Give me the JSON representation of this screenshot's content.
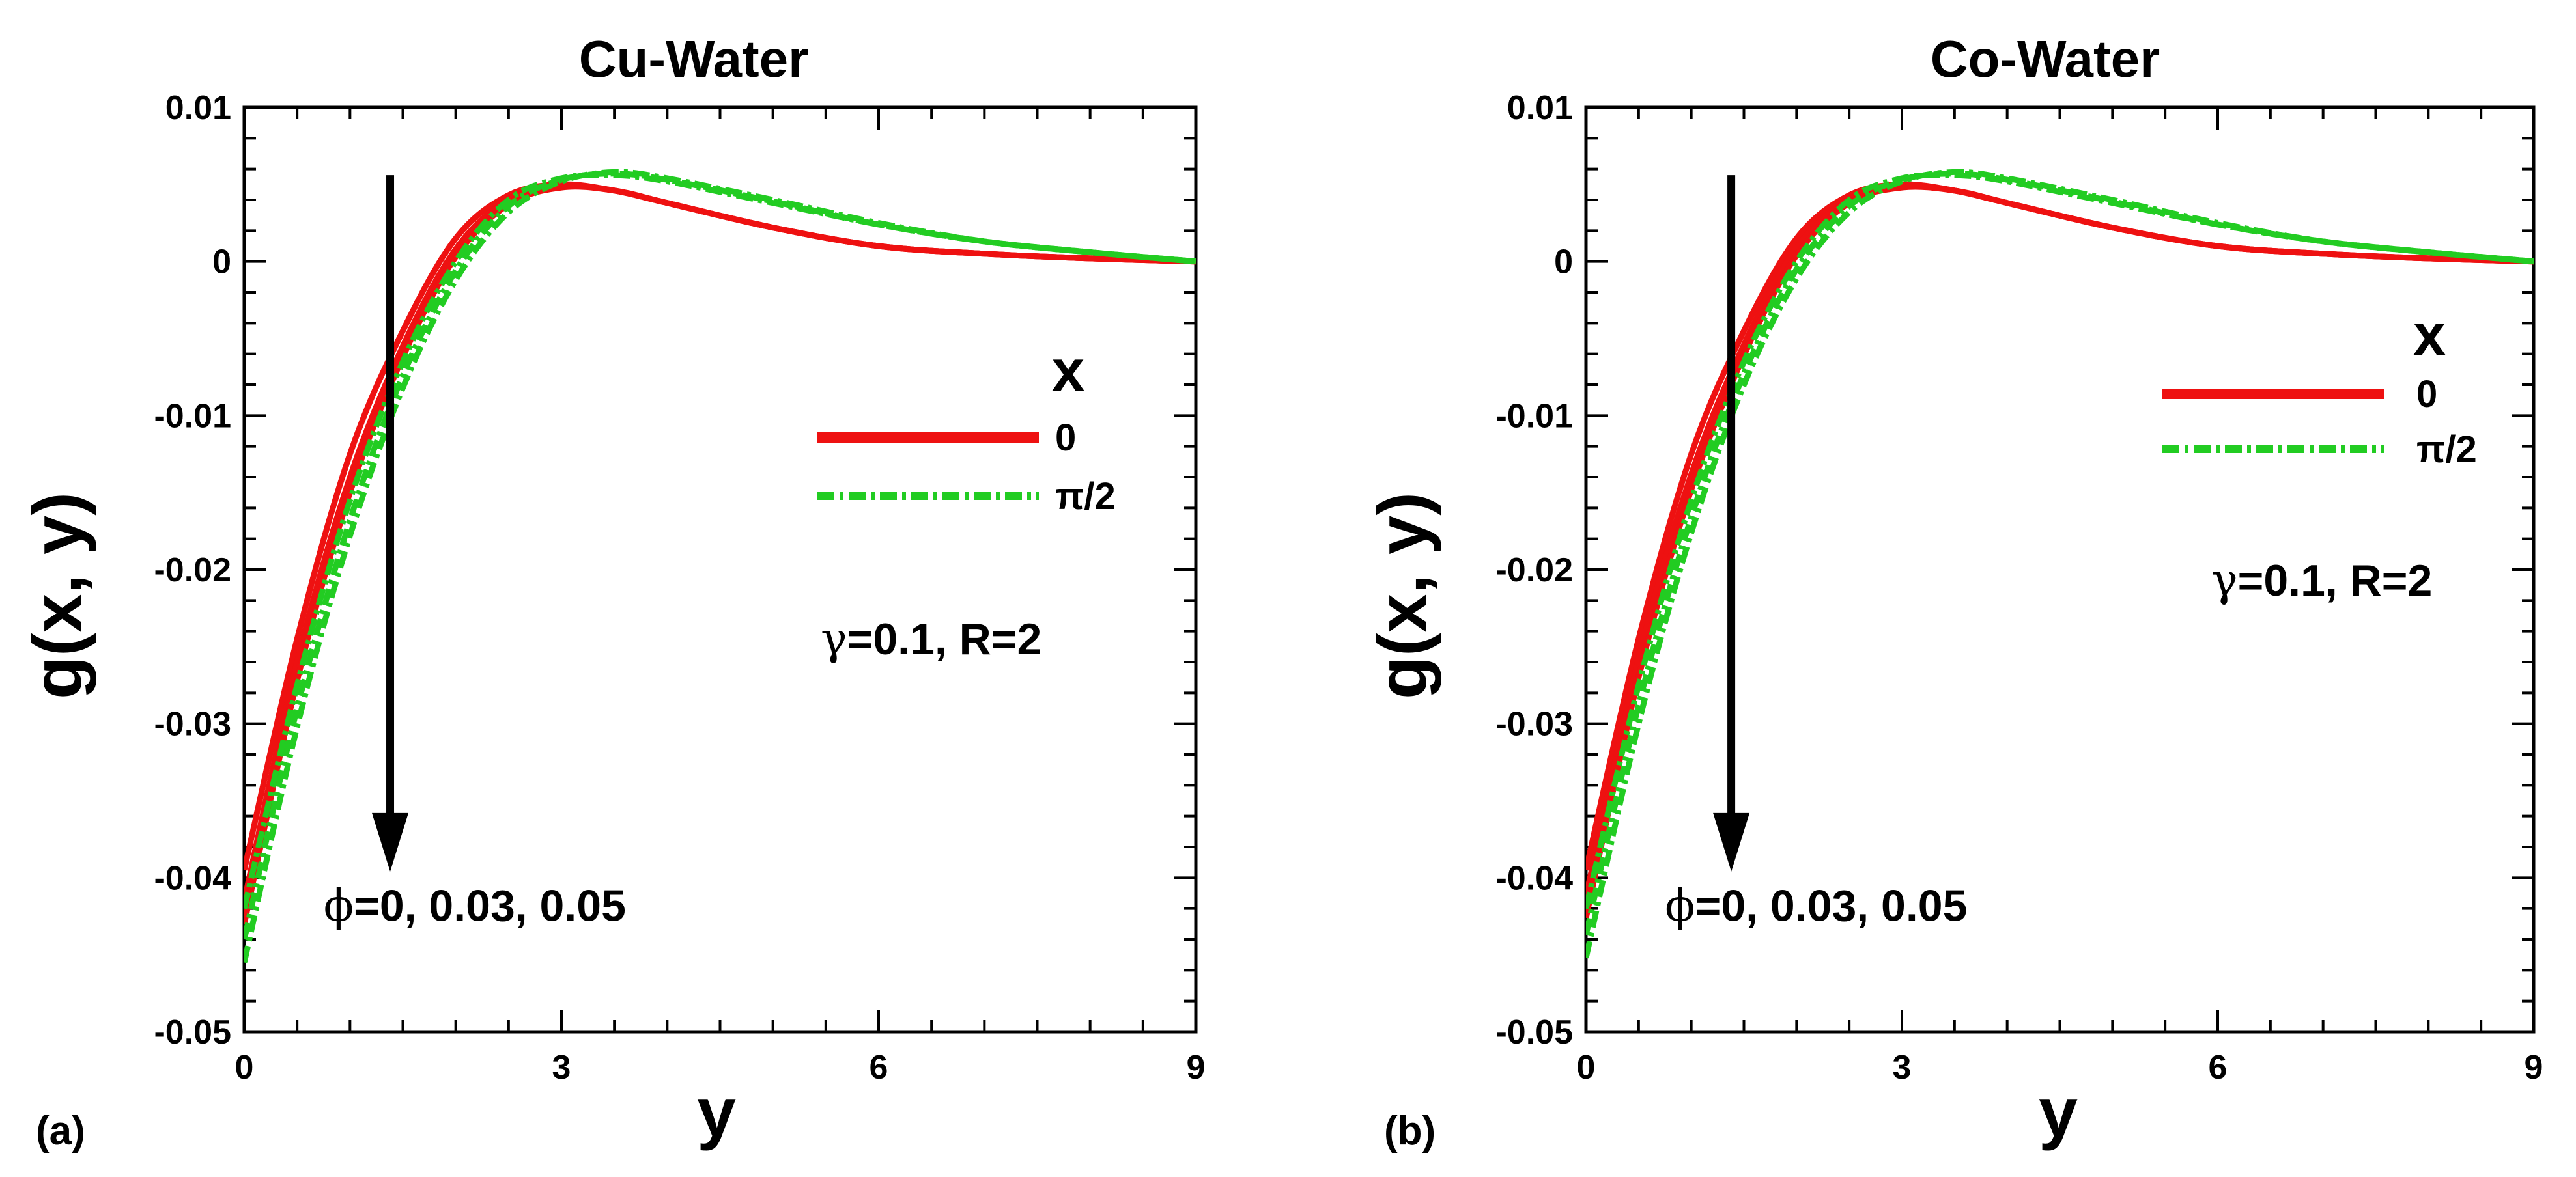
{
  "chart_data": [
    {
      "type": "line",
      "panel_label": "(a)",
      "title": "Cu-Water",
      "xlabel": "y",
      "ylabel": "g(x, y)",
      "xlim": [
        0,
        9
      ],
      "ylim": [
        -0.05,
        0.01
      ],
      "xticks": [
        "0",
        "3",
        "6",
        "9"
      ],
      "yticks": [
        "0.01",
        "0",
        "-0.01",
        "-0.02",
        "-0.03",
        "-0.04",
        "-0.05"
      ],
      "legend": {
        "title": "x",
        "entries": [
          "0",
          "π/2"
        ],
        "position": "right"
      },
      "params": {
        "symbol": "γ",
        "text": "=0.1, R=2"
      },
      "arrow_label": {
        "symbol": "ϕ",
        "text": "=0, 0.03, 0.05"
      },
      "series": [
        {
          "name": "0",
          "color": "#ee1111",
          "style": "solid",
          "curves": [
            {
              "x": [
                0,
                0.5,
                1,
                1.5,
                2,
                2.5,
                3,
                3.5,
                4,
                5,
                6,
                7,
                8,
                9
              ],
              "y": [
                -0.0395,
                -0.0245,
                -0.0125,
                -0.0045,
                0.0015,
                0.0043,
                0.005,
                0.0046,
                0.0038,
                0.0022,
                0.001,
                0.0005,
                0.0002,
                0.0
              ]
            },
            {
              "x": [
                0,
                0.5,
                1,
                1.5,
                2,
                2.5,
                3,
                3.5,
                4,
                5,
                6,
                7,
                8,
                9
              ],
              "y": [
                -0.0415,
                -0.026,
                -0.014,
                -0.0055,
                0.0008,
                0.004,
                0.0049,
                0.0046,
                0.0038,
                0.0022,
                0.001,
                0.0005,
                0.0002,
                0.0
              ]
            },
            {
              "x": [
                0,
                0.5,
                1,
                1.5,
                2,
                2.5,
                3,
                3.5,
                4,
                5,
                6,
                7,
                8,
                9
              ],
              "y": [
                -0.043,
                -0.0272,
                -0.015,
                -0.0062,
                0.0003,
                0.0037,
                0.0048,
                0.0046,
                0.0038,
                0.0022,
                0.001,
                0.0005,
                0.0002,
                0.0
              ]
            }
          ]
        },
        {
          "name": "π/2",
          "color": "#22cc22",
          "style": "dashdot",
          "curves": [
            {
              "x": [
                0,
                0.5,
                1,
                1.5,
                2,
                2.5,
                3,
                3.5,
                4,
                5,
                6,
                7,
                8,
                9
              ],
              "y": [
                -0.042,
                -0.0275,
                -0.0155,
                -0.0065,
                0.0,
                0.004,
                0.0054,
                0.0056,
                0.0052,
                0.0038,
                0.0024,
                0.0013,
                0.0006,
                0.0
              ]
            },
            {
              "x": [
                0,
                0.5,
                1,
                1.5,
                2,
                2.5,
                3,
                3.5,
                4,
                5,
                6,
                7,
                8,
                9
              ],
              "y": [
                -0.044,
                -0.029,
                -0.0168,
                -0.0074,
                -0.0006,
                0.0036,
                0.0053,
                0.0057,
                0.0053,
                0.0039,
                0.0024,
                0.0013,
                0.0006,
                0.0
              ]
            },
            {
              "x": [
                0,
                0.5,
                1,
                1.5,
                2,
                2.5,
                3,
                3.5,
                4,
                5,
                6,
                7,
                8,
                9
              ],
              "y": [
                -0.0455,
                -0.0302,
                -0.0178,
                -0.0082,
                -0.0012,
                0.0032,
                0.0052,
                0.0058,
                0.0054,
                0.004,
                0.0025,
                0.0013,
                0.0006,
                0.0
              ]
            }
          ]
        }
      ]
    },
    {
      "type": "line",
      "panel_label": "(b)",
      "title": "Co-Water",
      "xlabel": "y",
      "ylabel": "g(x, y)",
      "xlim": [
        0,
        9
      ],
      "ylim": [
        -0.05,
        0.01
      ],
      "xticks": [
        "0",
        "3",
        "6",
        "9"
      ],
      "yticks": [
        "0.01",
        "0",
        "-0.01",
        "-0.02",
        "-0.03",
        "-0.04",
        "-0.05"
      ],
      "legend": {
        "title": "x",
        "entries": [
          "0",
          "π/2"
        ],
        "position": "right"
      },
      "params": {
        "symbol": "γ",
        "text": "=0.1, R=2"
      },
      "arrow_label": {
        "symbol": "ϕ",
        "text": "=0, 0.03, 0.05"
      },
      "series": [
        {
          "name": "0",
          "color": "#ee1111",
          "style": "solid",
          "curves": [
            {
              "x": [
                0,
                0.5,
                1,
                1.5,
                2,
                2.5,
                3,
                3.5,
                4,
                5,
                6,
                7,
                8,
                9
              ],
              "y": [
                -0.0395,
                -0.0245,
                -0.0125,
                -0.0045,
                0.0015,
                0.0043,
                0.005,
                0.0046,
                0.0038,
                0.0022,
                0.001,
                0.0005,
                0.0002,
                0.0
              ]
            },
            {
              "x": [
                0,
                0.5,
                1,
                1.5,
                2,
                2.5,
                3,
                3.5,
                4,
                5,
                6,
                7,
                8,
                9
              ],
              "y": [
                -0.0412,
                -0.0258,
                -0.0138,
                -0.0054,
                0.0009,
                0.004,
                0.0049,
                0.0046,
                0.0038,
                0.0022,
                0.001,
                0.0005,
                0.0002,
                0.0
              ]
            },
            {
              "x": [
                0,
                0.5,
                1,
                1.5,
                2,
                2.5,
                3,
                3.5,
                4,
                5,
                6,
                7,
                8,
                9
              ],
              "y": [
                -0.0426,
                -0.027,
                -0.0148,
                -0.0061,
                0.0004,
                0.0038,
                0.0048,
                0.0046,
                0.0038,
                0.0022,
                0.001,
                0.0005,
                0.0002,
                0.0
              ]
            }
          ]
        },
        {
          "name": "π/2",
          "color": "#22cc22",
          "style": "dashdot",
          "curves": [
            {
              "x": [
                0,
                0.5,
                1,
                1.5,
                2,
                2.5,
                3,
                3.5,
                4,
                5,
                6,
                7,
                8,
                9
              ],
              "y": [
                -0.042,
                -0.0275,
                -0.0155,
                -0.0065,
                0.0,
                0.004,
                0.0054,
                0.0056,
                0.0052,
                0.0038,
                0.0024,
                0.0013,
                0.0006,
                0.0
              ]
            },
            {
              "x": [
                0,
                0.5,
                1,
                1.5,
                2,
                2.5,
                3,
                3.5,
                4,
                5,
                6,
                7,
                8,
                9
              ],
              "y": [
                -0.0437,
                -0.0288,
                -0.0166,
                -0.0073,
                -0.0005,
                0.0036,
                0.0053,
                0.0057,
                0.0053,
                0.0039,
                0.0024,
                0.0013,
                0.0006,
                0.0
              ]
            },
            {
              "x": [
                0,
                0.5,
                1,
                1.5,
                2,
                2.5,
                3,
                3.5,
                4,
                5,
                6,
                7,
                8,
                9
              ],
              "y": [
                -0.0452,
                -0.03,
                -0.0176,
                -0.008,
                -0.0011,
                0.0032,
                0.0052,
                0.0058,
                0.0054,
                0.004,
                0.0025,
                0.0013,
                0.0006,
                0.0
              ]
            }
          ]
        }
      ]
    }
  ]
}
